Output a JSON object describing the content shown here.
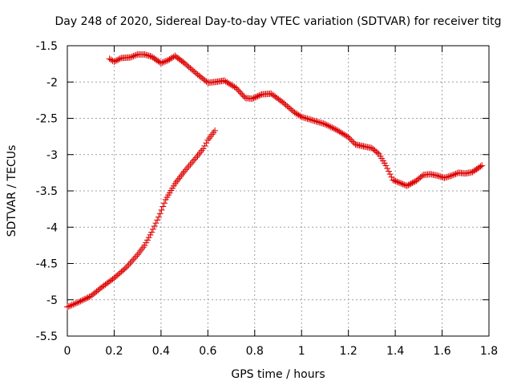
{
  "chart_data": {
    "type": "scatter",
    "title": "Day 248 of 2020, Sidereal Day-to-day VTEC variation (SDTVAR) for receiver titg",
    "xlabel": "GPS time / hours",
    "ylabel": "SDTVAR / TECUs",
    "xlim": [
      0,
      1.8
    ],
    "ylim": [
      -5.5,
      -1.5
    ],
    "x_ticks": [
      0,
      0.2,
      0.4,
      0.6,
      0.8,
      1,
      1.2,
      1.4,
      1.6,
      1.8
    ],
    "x_tick_labels": [
      "0",
      "0.2",
      "0.4",
      "0.6",
      "0.8",
      "1",
      "1.2",
      "1.4",
      "1.6",
      "1.8"
    ],
    "y_ticks": [
      -5.5,
      -5,
      -4.5,
      -4,
      -3.5,
      -3,
      -2.5,
      -2,
      -1.5
    ],
    "y_tick_labels": [
      "-5.5",
      "-5",
      "-4.5",
      "-4",
      "-3.5",
      "-3",
      "-2.5",
      "-2",
      "-1.5"
    ],
    "grid": true,
    "marker": "+",
    "marker_color": "#dd0000",
    "series": [
      {
        "name": "segment-1",
        "points": [
          [
            0.0,
            -5.1
          ],
          [
            0.05,
            -5.03
          ],
          [
            0.1,
            -4.95
          ],
          [
            0.15,
            -4.82
          ],
          [
            0.2,
            -4.7
          ],
          [
            0.25,
            -4.56
          ],
          [
            0.3,
            -4.38
          ],
          [
            0.33,
            -4.25
          ],
          [
            0.36,
            -4.07
          ],
          [
            0.39,
            -3.86
          ],
          [
            0.42,
            -3.62
          ],
          [
            0.46,
            -3.4
          ],
          [
            0.5,
            -3.23
          ],
          [
            0.55,
            -3.04
          ],
          [
            0.58,
            -2.92
          ],
          [
            0.6,
            -2.8
          ],
          [
            0.63,
            -2.67
          ]
        ]
      },
      {
        "name": "segment-2",
        "points": [
          [
            0.18,
            -1.68
          ],
          [
            0.2,
            -1.72
          ],
          [
            0.23,
            -1.67
          ],
          [
            0.27,
            -1.66
          ],
          [
            0.3,
            -1.62
          ],
          [
            0.33,
            -1.62
          ],
          [
            0.36,
            -1.65
          ],
          [
            0.4,
            -1.74
          ],
          [
            0.43,
            -1.7
          ],
          [
            0.46,
            -1.64
          ],
          [
            0.5,
            -1.74
          ],
          [
            0.55,
            -1.88
          ],
          [
            0.6,
            -2.01
          ],
          [
            0.63,
            -2.0
          ],
          [
            0.67,
            -1.98
          ],
          [
            0.72,
            -2.08
          ],
          [
            0.76,
            -2.22
          ],
          [
            0.79,
            -2.23
          ],
          [
            0.83,
            -2.17
          ],
          [
            0.87,
            -2.16
          ],
          [
            0.92,
            -2.28
          ],
          [
            0.97,
            -2.42
          ],
          [
            1.0,
            -2.48
          ],
          [
            1.05,
            -2.53
          ],
          [
            1.1,
            -2.58
          ],
          [
            1.15,
            -2.66
          ],
          [
            1.2,
            -2.76
          ],
          [
            1.23,
            -2.86
          ],
          [
            1.27,
            -2.89
          ],
          [
            1.3,
            -2.91
          ],
          [
            1.33,
            -2.99
          ],
          [
            1.36,
            -3.15
          ],
          [
            1.39,
            -3.35
          ],
          [
            1.42,
            -3.39
          ],
          [
            1.45,
            -3.43
          ],
          [
            1.49,
            -3.36
          ],
          [
            1.52,
            -3.28
          ],
          [
            1.55,
            -3.27
          ],
          [
            1.58,
            -3.29
          ],
          [
            1.61,
            -3.32
          ],
          [
            1.64,
            -3.29
          ],
          [
            1.67,
            -3.25
          ],
          [
            1.7,
            -3.26
          ],
          [
            1.73,
            -3.24
          ],
          [
            1.77,
            -3.15
          ]
        ]
      }
    ]
  }
}
